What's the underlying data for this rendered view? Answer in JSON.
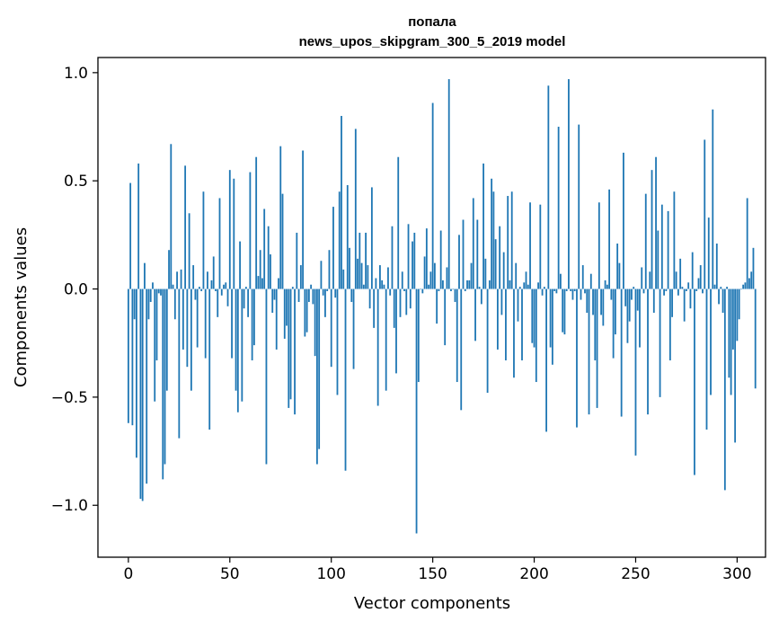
{
  "chart_data": {
    "type": "bar",
    "title": "попала",
    "subtitle": "news_upos_skipgram_300_5_2019 model",
    "xlabel": "Vector components",
    "ylabel": "Components values",
    "xlim": [
      -15,
      314
    ],
    "ylim": [
      -1.24,
      1.07
    ],
    "xticks": [
      0,
      50,
      100,
      150,
      200,
      250,
      300
    ],
    "yticks": [
      -1.0,
      -0.5,
      0.0,
      0.5,
      1.0
    ],
    "ytick_labels": [
      "−1.0",
      "−0.5",
      "0.0",
      "0.5",
      "1.0"
    ],
    "bar_color": "#1f77b4",
    "grid": false,
    "values": [
      -0.62,
      0.49,
      -0.63,
      -0.14,
      -0.78,
      0.58,
      -0.97,
      -0.98,
      0.12,
      -0.9,
      -0.14,
      -0.06,
      0.03,
      -0.52,
      -0.33,
      -0.02,
      -0.03,
      -0.88,
      -0.81,
      -0.47,
      0.18,
      0.67,
      0.02,
      -0.14,
      0.08,
      -0.69,
      0.09,
      -0.28,
      0.57,
      -0.36,
      0.35,
      -0.47,
      0.11,
      -0.05,
      -0.27,
      0.01,
      -0.01,
      0.45,
      -0.32,
      0.08,
      -0.65,
      0.04,
      0.15,
      -0.01,
      -0.13,
      0.42,
      -0.03,
      0.02,
      0.03,
      -0.08,
      0.55,
      -0.32,
      0.51,
      -0.47,
      -0.57,
      0.22,
      -0.52,
      -0.09,
      0.01,
      -0.13,
      0.54,
      -0.33,
      -0.26,
      0.61,
      0.06,
      0.18,
      0.05,
      0.37,
      -0.81,
      0.29,
      0.16,
      -0.11,
      -0.05,
      -0.28,
      0.05,
      0.66,
      0.44,
      -0.23,
      -0.17,
      -0.55,
      -0.51,
      0.01,
      -0.58,
      0.26,
      -0.06,
      0.11,
      0.64,
      -0.22,
      -0.2,
      -0.06,
      0.02,
      -0.07,
      -0.31,
      -0.81,
      -0.74,
      0.13,
      -0.03,
      -0.13,
      -0.01,
      0.18,
      -0.36,
      0.38,
      -0.04,
      -0.49,
      0.45,
      0.8,
      0.09,
      -0.84,
      0.48,
      0.19,
      -0.06,
      -0.37,
      0.74,
      0.14,
      0.26,
      0.12,
      0.02,
      0.26,
      0.11,
      -0.09,
      0.47,
      -0.18,
      0.05,
      -0.54,
      0.11,
      0.04,
      0.02,
      -0.47,
      0.1,
      -0.03,
      0.29,
      -0.18,
      -0.39,
      0.61,
      -0.13,
      0.08,
      -0.01,
      -0.12,
      0.3,
      -0.09,
      0.22,
      0.26,
      -1.13,
      -0.43,
      0.0,
      -0.02,
      0.15,
      0.28,
      0.02,
      0.08,
      0.86,
      0.12,
      -0.16,
      -0.01,
      0.27,
      0.04,
      -0.26,
      0.1,
      0.97,
      -0.01,
      0.0,
      -0.06,
      -0.43,
      0.25,
      -0.56,
      0.32,
      -0.01,
      0.04,
      0.04,
      0.12,
      0.42,
      -0.24,
      0.32,
      0.01,
      -0.07,
      0.58,
      0.14,
      -0.48,
      0.04,
      0.51,
      0.45,
      0.23,
      -0.28,
      0.29,
      -0.12,
      0.17,
      -0.33,
      0.43,
      0.04,
      0.45,
      -0.41,
      0.12,
      -0.15,
      0.01,
      -0.33,
      0.03,
      0.08,
      0.02,
      0.4,
      -0.25,
      -0.27,
      -0.43,
      0.03,
      0.39,
      -0.03,
      0.01,
      -0.66,
      0.94,
      -0.27,
      -0.35,
      -0.01,
      -0.02,
      0.75,
      0.07,
      -0.2,
      -0.21,
      -0.01,
      0.97,
      -0.01,
      -0.05,
      -0.01,
      -0.64,
      0.76,
      -0.05,
      0.11,
      -0.02,
      -0.11,
      -0.58,
      0.07,
      -0.12,
      -0.33,
      -0.55,
      0.4,
      -0.12,
      -0.17,
      0.04,
      0.02,
      0.46,
      -0.05,
      -0.32,
      -0.21,
      0.21,
      0.12,
      -0.59,
      0.63,
      -0.08,
      -0.25,
      -0.15,
      -0.05,
      0.01,
      -0.77,
      -0.1,
      -0.27,
      0.1,
      -0.02,
      0.44,
      -0.58,
      0.08,
      0.55,
      -0.11,
      0.61,
      0.27,
      -0.5,
      0.39,
      -0.03,
      -0.01,
      0.36,
      -0.33,
      -0.13,
      0.45,
      0.08,
      -0.03,
      0.14,
      0.01,
      -0.15,
      -0.01,
      0.03,
      -0.09,
      0.17,
      -0.86,
      -0.01,
      0.05,
      0.11,
      -0.02,
      0.69,
      -0.65,
      0.33,
      -0.49,
      0.83,
      0.02,
      0.21,
      -0.07,
      0.01,
      -0.11,
      -0.93,
      0.01,
      -0.41,
      -0.49,
      -0.28,
      -0.71,
      -0.24,
      -0.14,
      0.0,
      0.02,
      0.03,
      0.42,
      0.05,
      0.08,
      0.19,
      -0.46
    ]
  }
}
